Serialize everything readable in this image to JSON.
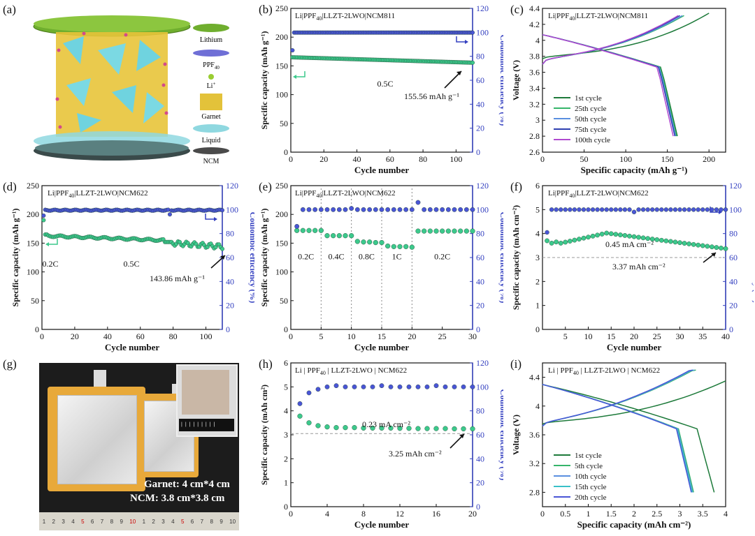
{
  "panel_labels": [
    "(a)",
    "(b)",
    "(c)",
    "(d)",
    "(e)",
    "(f)",
    "(g)",
    "(h)",
    "(i)"
  ],
  "schematic": {
    "legend": [
      {
        "label": "Lithium",
        "color": "#6a9a2c"
      },
      {
        "label": "PPF40",
        "color": "#6f6fd6"
      },
      {
        "label": "Li+",
        "color": "#9acd32"
      },
      {
        "label": "Garnet",
        "color": "#e3c23a"
      },
      {
        "label": "Liquid",
        "color": "#8fd8e0"
      },
      {
        "label": "NCM",
        "color": "#4a4a4a"
      }
    ]
  },
  "photo": {
    "line1": "Garnet: 4 cm*4 cm",
    "line2": "NCM: 3.8 cm*3.8 cm",
    "ruler_numbers": [
      "1",
      "2",
      "3",
      "4",
      "5",
      "6",
      "7",
      "8",
      "9",
      "10",
      "1",
      "2",
      "3",
      "4",
      "5",
      "6",
      "7",
      "8",
      "9",
      "10"
    ]
  },
  "chart_data": [
    {
      "id": "b",
      "type": "scatter",
      "title": "Li|PPF40|LLZT-2LWO|NCM811",
      "xlabel": "Cycle number",
      "ylabel": "Specific capacity (mAh g-1)",
      "y2label": "Coulombic efficiency (%)",
      "xlim": [
        0,
        110
      ],
      "ylim": [
        0,
        250
      ],
      "y2lim": [
        0,
        120
      ],
      "xticks": [
        0,
        20,
        40,
        60,
        80,
        100
      ],
      "yticks": [
        0,
        50,
        100,
        150,
        200,
        250
      ],
      "y2ticks": [
        0,
        20,
        40,
        60,
        80,
        100,
        120
      ],
      "annotations": [
        {
          "text": "0.5C"
        },
        {
          "text": "155.56 mAh g-1"
        }
      ],
      "series": [
        {
          "name": "capacity",
          "axis": "left",
          "color": "#3cc98c",
          "start": 165,
          "end": 155.56,
          "n": 110
        },
        {
          "name": "efficiency",
          "axis": "right",
          "color": "#4a55d6",
          "start": 99.8,
          "end": 99.9,
          "n": 110,
          "first": 85
        }
      ]
    },
    {
      "id": "c",
      "type": "line",
      "title": "Li|PPF40|LLZT-2LWO|NCM811",
      "xlabel": "Specific capacity (mAh g-1)",
      "ylabel": "Voltage (V)",
      "xlim": [
        0,
        220
      ],
      "ylim": [
        2.6,
        4.4
      ],
      "xticks": [
        0,
        50,
        100,
        150,
        200
      ],
      "yticks": [
        2.6,
        2.8,
        3.0,
        3.2,
        3.4,
        3.6,
        3.8,
        4.0,
        4.2,
        4.4
      ],
      "legend": [
        "1st cycle",
        "25th cycle",
        "50th cycle",
        "75th cycle",
        "100th cycle"
      ],
      "colors": [
        "#1d7a3a",
        "#35b56a",
        "#5a8fe0",
        "#2d3fb0",
        "#b04ad0"
      ],
      "charge_end": [
        200,
        170,
        168,
        165,
        163
      ],
      "discharge_end": [
        162,
        161,
        160,
        159,
        157
      ]
    },
    {
      "id": "d",
      "type": "scatter",
      "title": "Li|PPF40|LLZT-2LWO|NCM622",
      "xlabel": "Cycle number",
      "ylabel": "Specific capacity (mAh g-1)",
      "y2label": "Coulombic efficiency (%)",
      "xlim": [
        0,
        110
      ],
      "ylim": [
        0,
        250
      ],
      "y2lim": [
        0,
        120
      ],
      "xticks": [
        0,
        20,
        40,
        60,
        80,
        100
      ],
      "yticks": [
        0,
        50,
        100,
        150,
        200,
        250
      ],
      "y2ticks": [
        0,
        20,
        40,
        60,
        80,
        100,
        120
      ],
      "annotations": [
        {
          "text": "0.2C"
        },
        {
          "text": "0.5C"
        },
        {
          "text": "143.86 mAh g-1"
        }
      ],
      "series": [
        {
          "name": "capacity",
          "axis": "left",
          "color": "#3cc98c",
          "start": 162,
          "end": 143.86,
          "n": 110,
          "first": 190
        },
        {
          "name": "efficiency",
          "axis": "right",
          "color": "#4a55d6",
          "start": 99.5,
          "end": 99.5,
          "n": 110,
          "first": 95
        }
      ]
    },
    {
      "id": "e",
      "type": "scatter",
      "title": "Li|PPF40|LLZT-2LWO|NCM622",
      "xlabel": "Cycle number",
      "ylabel": "Specific capacity (mAh g-1)",
      "y2label": "Coulombic efficiency (%)",
      "xlim": [
        0,
        30
      ],
      "ylim": [
        0,
        250
      ],
      "y2lim": [
        0,
        120
      ],
      "xticks": [
        0,
        5,
        10,
        15,
        20,
        25,
        30
      ],
      "yticks": [
        0,
        50,
        100,
        150,
        200,
        250
      ],
      "y2ticks": [
        0,
        20,
        40,
        60,
        80,
        100,
        120
      ],
      "annotations": [
        {
          "text": "0.2C"
        },
        {
          "text": "0.4C"
        },
        {
          "text": "0.8C"
        },
        {
          "text": "1C"
        },
        {
          "text": "0.2C"
        }
      ],
      "rate_capacity": [
        172,
        172,
        172,
        172,
        172,
        163,
        163,
        163,
        163,
        163,
        153,
        152,
        152,
        151,
        151,
        145,
        144,
        144,
        144,
        143,
        171,
        171,
        171,
        171,
        171,
        171,
        171,
        171,
        171,
        171
      ],
      "efficiency": [
        86,
        100,
        100,
        100,
        100,
        100,
        100,
        100,
        100,
        101,
        100,
        100,
        100,
        100,
        100,
        100,
        100,
        100,
        100,
        100,
        106,
        100,
        100,
        100,
        100,
        100,
        100,
        100,
        100,
        100
      ]
    },
    {
      "id": "f",
      "type": "scatter",
      "title": "Li|PPF40|LLZT-2LWO|NCM622",
      "xlabel": "Cycle number",
      "ylabel": "Specific capacity (mAh cm-2)",
      "y2label": "Coulombic efficiency (%)",
      "xlim": [
        0,
        40
      ],
      "ylim": [
        0,
        6
      ],
      "y2lim": [
        0,
        120
      ],
      "xticks": [
        5,
        10,
        15,
        20,
        25,
        30,
        35,
        40
      ],
      "yticks": [
        0,
        1,
        2,
        3,
        4,
        5,
        6
      ],
      "y2ticks": [
        0,
        20,
        40,
        60,
        80,
        100,
        120
      ],
      "annotations": [
        {
          "text": "0.45 mA cm-2"
        },
        {
          "text": "3.37 mAh cm-2"
        }
      ],
      "series": [
        {
          "name": "capacity",
          "axis": "left",
          "color": "#3cc98c",
          "n": 40
        },
        {
          "name": "efficiency",
          "axis": "right",
          "color": "#4a55d6",
          "n": 40,
          "first": 81
        }
      ]
    },
    {
      "id": "h",
      "type": "scatter",
      "title": "Li | PPF40 | LLZT-2LWO | NCM622",
      "xlabel": "Cycle number",
      "ylabel": "Specific capacity (mAh cm2)",
      "y2label": "Coulombic efficiency (%)",
      "xlim": [
        0,
        20
      ],
      "ylim": [
        0,
        6
      ],
      "y2lim": [
        0,
        120
      ],
      "xticks": [
        0,
        4,
        8,
        12,
        16,
        20
      ],
      "yticks": [
        0,
        1,
        2,
        3,
        4,
        5,
        6
      ],
      "y2ticks": [
        0,
        20,
        40,
        60,
        80,
        100,
        120
      ],
      "annotations": [
        {
          "text": "0.23 mA cm-2"
        },
        {
          "text": "3.25 mAh cm-2"
        }
      ],
      "capacity": [
        3.78,
        3.5,
        3.38,
        3.33,
        3.3,
        3.3,
        3.3,
        3.28,
        3.28,
        3.28,
        3.28,
        3.27,
        3.27,
        3.26,
        3.26,
        3.26,
        3.26,
        3.25,
        3.25,
        3.25
      ],
      "efficiency": [
        86,
        95,
        98,
        100,
        101,
        100,
        100,
        100,
        100,
        101,
        100,
        100,
        100,
        100,
        100,
        101,
        100,
        100,
        100,
        100
      ]
    },
    {
      "id": "i",
      "type": "line",
      "title": "Li | PPF40 | LLZT-2LWO | NCM622",
      "xlabel": "Specific capacity (mAh cm-2)",
      "ylabel": "Voltage (V)",
      "xlim": [
        0,
        4.0
      ],
      "ylim": [
        2.6,
        4.6
      ],
      "xticks": [
        0.0,
        0.5,
        1.0,
        1.5,
        2.0,
        2.5,
        3.0,
        3.5,
        4.0
      ],
      "yticks": [
        2.8,
        3.2,
        3.6,
        4.0,
        4.4
      ],
      "legend": [
        "1st cycle",
        "5th cycle",
        "10th cycle",
        "15th cycle",
        "20th cycle"
      ],
      "colors": [
        "#1d7a3a",
        "#35b56a",
        "#5a8fe0",
        "#39c0c8",
        "#4a55d6"
      ],
      "charge_end": [
        4.0,
        3.35,
        3.32,
        3.3,
        3.28
      ],
      "discharge_end": [
        3.75,
        3.3,
        3.28,
        3.27,
        3.25
      ]
    }
  ]
}
